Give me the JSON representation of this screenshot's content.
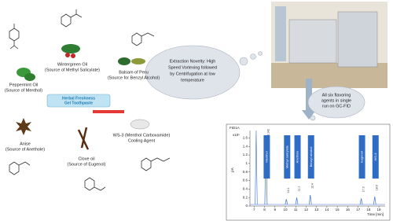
{
  "sources": {
    "peppermint": [
      "Peppermint Oil",
      "(Source of Menthol)"
    ],
    "wintergreen": [
      "Wintergreen Oil",
      "(Source of Methyl Salicylate)"
    ],
    "balsam": [
      "Balsam of Peru",
      "(Source for Benzyl Alcohol)"
    ],
    "anise": [
      "Anise",
      "(Source of Anethole)"
    ],
    "clove": [
      "Clove oil",
      "(Source of Eugenol)"
    ],
    "ws3": [
      "WS-3  (Menthol Carboxamide)",
      "Cooling Agent"
    ]
  },
  "toothpaste": [
    "Herbal Freshness",
    "Gel Toothpaste"
  ],
  "extraction_note": [
    "Extraction Novelty: High",
    "Speed Vortexing followed",
    "by Centrifugation at low",
    "temperature"
  ],
  "gc_note": [
    "All six flavoring",
    "agents in single",
    "run on GC-FID"
  ],
  "chart_data": {
    "type": "line",
    "header": "FID1A",
    "scale_label": "x10¹",
    "ylabel": "pA",
    "xlabel": "Time [min]",
    "xlim": [
      6.6,
      19.6
    ],
    "xticks": [
      7,
      8,
      9,
      10,
      11,
      12,
      13,
      14,
      15,
      16,
      17,
      18,
      19
    ],
    "ylim": [
      0,
      1.7
    ],
    "yticks": [
      0,
      {
        "value": 0.2,
        "label": "0.2"
      },
      {
        "value": 0.4,
        "label": "0.4"
      },
      {
        "value": 0.6,
        "label": "0.6"
      },
      {
        "value": 0.8,
        "label": "0.8"
      },
      1,
      {
        "value": 1.2,
        "label": "1.2"
      },
      {
        "value": 1.4,
        "label": "1.4"
      },
      {
        "value": 1.6,
        "label": "1.6"
      }
    ],
    "peaks": [
      {
        "name": "Menthol",
        "time": 8.142,
        "height": 1.5
      },
      {
        "name": "Methyl salicylate",
        "time": 10.1,
        "height": 0.16
      },
      {
        "name": "Anethole",
        "time": 11.1,
        "height": 0.2
      },
      {
        "name": "Benzyl alcohol",
        "time": 12.4,
        "height": 0.26
      },
      {
        "name": "Eugenol",
        "time": 17.3,
        "height": 0.18
      },
      {
        "name": "WS-3",
        "time": 18.6,
        "height": 0.22
      }
    ]
  }
}
